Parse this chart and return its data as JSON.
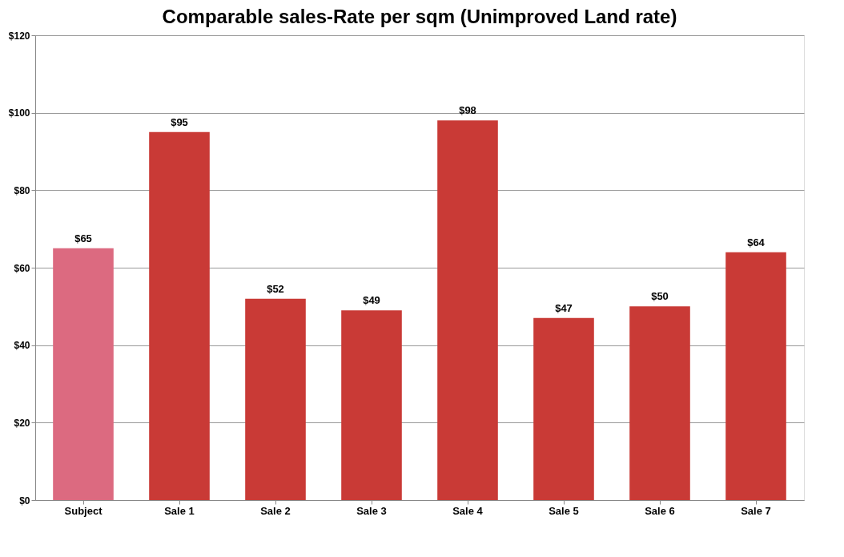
{
  "chart_data": {
    "type": "bar",
    "title": "Comparable sales-Rate per sqm (Unimproved Land rate)",
    "categories": [
      "Subject",
      "Sale 1",
      "Sale 2",
      "Sale 3",
      "Sale 4",
      "Sale 5",
      "Sale 6",
      "Sale 7"
    ],
    "values": [
      65,
      95,
      52,
      49,
      98,
      47,
      50,
      64
    ],
    "colors": [
      "#dc6a80",
      "#c93a36",
      "#c93a36",
      "#c93a36",
      "#c93a36",
      "#c93a36",
      "#c93a36",
      "#c93a36"
    ],
    "value_labels": [
      "$65",
      "$95",
      "$52",
      "$49",
      "$98",
      "$47",
      "$50",
      "$64"
    ],
    "ylim": [
      0,
      120
    ],
    "yticks": [
      {
        "value": 0,
        "label": "$0"
      },
      {
        "value": 20,
        "label": "$20"
      },
      {
        "value": 40,
        "label": "$40"
      },
      {
        "value": 60,
        "label": "$60"
      },
      {
        "value": 80,
        "label": "$80"
      },
      {
        "value": 100,
        "label": "$100"
      },
      {
        "value": 120,
        "label": "$120"
      }
    ],
    "grid": "y"
  }
}
